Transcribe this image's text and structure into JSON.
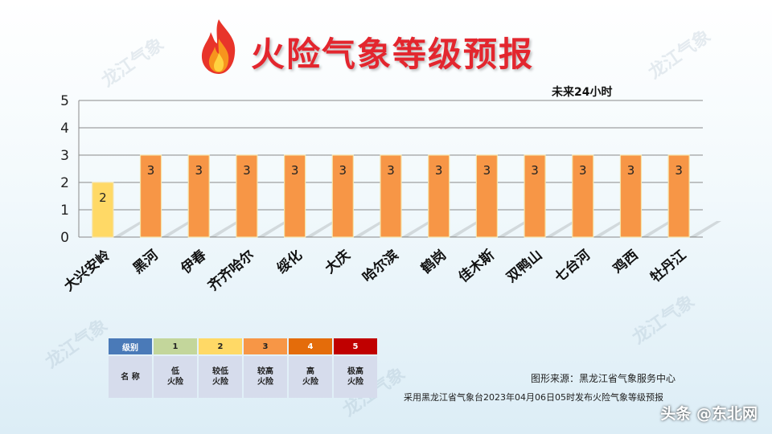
{
  "title": "火险气象等级预报",
  "watermark": "龙江气象",
  "chart_data": {
    "type": "bar",
    "title": "",
    "subtitle": "未来24小时",
    "categories": [
      "大兴安岭",
      "黑河",
      "伊春",
      "齐齐哈尔",
      "绥化",
      "大庆",
      "哈尔滨",
      "鹤岗",
      "佳木斯",
      "双鸭山",
      "七台河",
      "鸡西",
      "牡丹江"
    ],
    "values": [
      2,
      3,
      3,
      3,
      3,
      3,
      3,
      3,
      3,
      3,
      3,
      3,
      3
    ],
    "ylim": [
      0,
      5
    ],
    "yticks": [
      0,
      1,
      2,
      3,
      4,
      5
    ],
    "grid": true,
    "level_colors": {
      "1": "#c3d69b",
      "2": "#ffd966",
      "3": "#f79646",
      "4": "#e46c0a",
      "5": "#c00000"
    }
  },
  "legend": {
    "header_label": "级别",
    "body_label": "名 称",
    "levels": [
      {
        "level": "1",
        "name_line1": "低",
        "name_line2": "火险",
        "color": "#c3d69b"
      },
      {
        "level": "2",
        "name_line1": "较低",
        "name_line2": "火险",
        "color": "#ffd966"
      },
      {
        "level": "3",
        "name_line1": "较高",
        "name_line2": "火险",
        "color": "#f79646"
      },
      {
        "level": "4",
        "name_line1": "高",
        "name_line2": "火险",
        "color": "#e46c0a"
      },
      {
        "level": "5",
        "name_line1": "极高",
        "name_line2": "火险",
        "color": "#c00000"
      }
    ]
  },
  "source": "图形来源：黑龙江省气象服务中心",
  "publish_note": "采用黑龙江省气象台2023年04月06日05时发布火险气象等级预报",
  "credit": "头条 @东北网"
}
